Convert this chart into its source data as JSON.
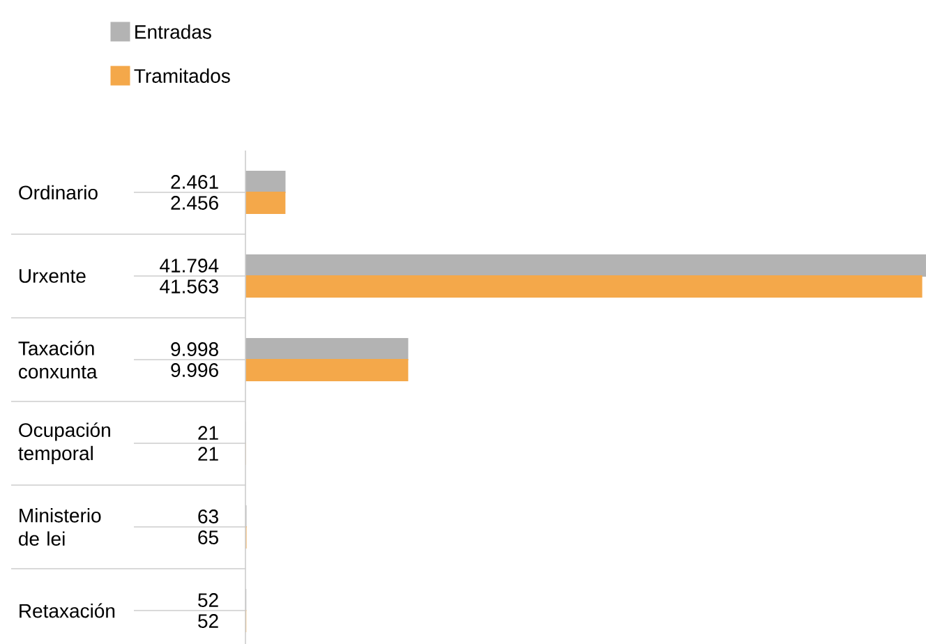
{
  "chart_data": {
    "type": "bar",
    "orientation": "horizontal",
    "categories": [
      "Ordinario",
      "Urxente",
      "Taxación conxunta",
      "Ocupación temporal",
      "Ministerio de lei",
      "Retaxación"
    ],
    "series": [
      {
        "name": "Entradas",
        "color": "#b3b3b3",
        "values": [
          2461,
          41794,
          9998,
          21,
          63,
          52
        ],
        "value_labels": [
          "2.461",
          "41.794",
          "9.998",
          "21",
          "63",
          "52"
        ]
      },
      {
        "name": "Tramitados",
        "color": "#f4a84a",
        "values": [
          2456,
          41563,
          9996,
          21,
          65,
          52
        ],
        "value_labels": [
          "2.456",
          "41.563",
          "9.996",
          "21",
          "65",
          "52"
        ]
      }
    ],
    "legend": "top left"
  }
}
